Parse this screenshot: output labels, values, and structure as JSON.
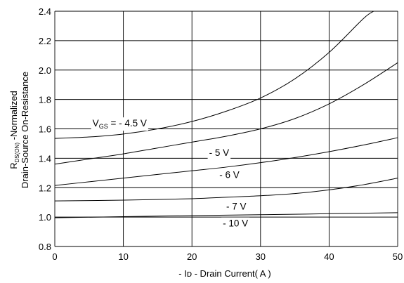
{
  "chart_data": {
    "type": "line",
    "title": "",
    "xlabel": "- Iᴅ - Drain Current( A )",
    "ylabel": {
      "line1_main": "R",
      "line1_sub": "DS(ON)",
      "line1_rest": " -Normalized",
      "line2": "Drain-Source On-Resistance"
    },
    "xlim": [
      0,
      50
    ],
    "ylim": [
      0.8,
      2.4
    ],
    "xticks": [
      "0",
      "10",
      "20",
      "30",
      "40",
      "50"
    ],
    "yticks": [
      "0.8",
      "1.0",
      "1.2",
      "1.4",
      "1.6",
      "1.8",
      "2.0",
      "2.2",
      "2.4"
    ],
    "grid": true,
    "series": [
      {
        "name": "V_GS = - 4.5 V",
        "x": [
          0,
          5,
          10,
          15,
          20,
          25,
          30,
          35,
          40,
          45,
          46.5
        ],
        "y": [
          1.535,
          1.545,
          1.565,
          1.6,
          1.65,
          1.72,
          1.81,
          1.94,
          2.12,
          2.35,
          2.4
        ]
      },
      {
        "name": "- 5 V",
        "x": [
          0,
          5,
          10,
          15,
          20,
          25,
          30,
          35,
          40,
          45,
          50
        ],
        "y": [
          1.36,
          1.395,
          1.43,
          1.47,
          1.51,
          1.55,
          1.6,
          1.67,
          1.77,
          1.9,
          2.05
        ]
      },
      {
        "name": "- 6 V",
        "x": [
          0,
          5,
          10,
          15,
          20,
          25,
          30,
          35,
          40,
          45,
          50
        ],
        "y": [
          1.215,
          1.24,
          1.265,
          1.29,
          1.315,
          1.34,
          1.37,
          1.405,
          1.445,
          1.49,
          1.54
        ]
      },
      {
        "name": "- 7 V",
        "x": [
          0,
          10,
          20,
          25,
          30,
          35,
          40,
          45,
          50
        ],
        "y": [
          1.11,
          1.115,
          1.125,
          1.135,
          1.145,
          1.16,
          1.185,
          1.22,
          1.265
        ]
      },
      {
        "name": "- 10 V",
        "x": [
          0,
          10,
          20,
          30,
          40,
          50
        ],
        "y": [
          0.995,
          1.003,
          1.01,
          1.016,
          1.023,
          1.03
        ]
      }
    ],
    "annotations": [
      {
        "text_main": "V",
        "text_sub": "GS",
        "text_rest": " = - 4.5 V",
        "x": 5.5,
        "y": 1.64
      },
      {
        "text": "- 5 V",
        "x": 22.5,
        "y": 1.44
      },
      {
        "text": "- 6 V",
        "x": 24,
        "y": 1.29
      },
      {
        "text": "- 7 V",
        "x": 25,
        "y": 1.075
      },
      {
        "text": "- 10 V",
        "x": 24.5,
        "y": 0.96
      }
    ]
  }
}
